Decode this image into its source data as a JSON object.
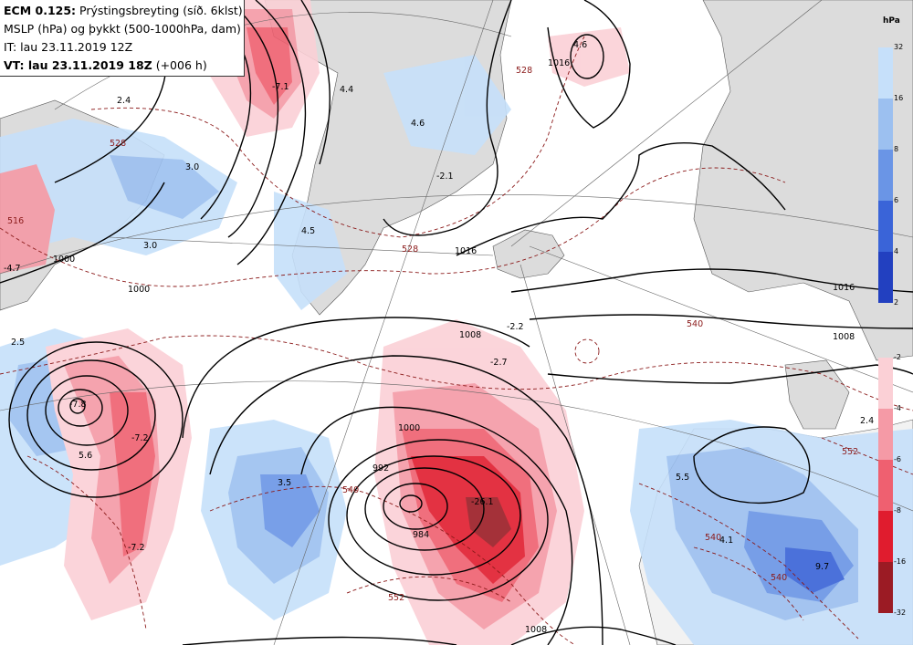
{
  "header": {
    "line1_bold": "ECM 0.125:",
    "line1_rest": " Prýstingsbreyting (síð. 6klst)",
    "line2": "MSLP (hPa) og þykkt (500-1000hPa, dam)",
    "line3": "IT: lau 23.11.2019 12Z",
    "line4_bold": "VT: lau 23.11.2019 18Z",
    "line4_rest": " (+006 h)"
  },
  "colorbar": {
    "unit": "hPa",
    "rise_labels": [
      "32",
      "16",
      "8",
      "6",
      "4",
      "2"
    ],
    "fall_labels": [
      "-2",
      "-4",
      "-6",
      "-8",
      "-16",
      "-32"
    ],
    "rise_colors": [
      "#2240c0",
      "#3a64d8",
      "#6a95e6",
      "#9cc0f0",
      "#c6e0fa"
    ],
    "fall_colors": [
      "#fbd0d6",
      "#f59aa6",
      "#ef6070",
      "#e01c2e",
      "#9b1b24"
    ]
  },
  "isobar_labels": [
    "1016",
    "1016",
    "1016",
    "1008",
    "1008",
    "1008",
    "1000",
    "1000",
    "1000",
    "992",
    "984"
  ],
  "thickness_labels": [
    "528",
    "528",
    "528",
    "540",
    "540",
    "540",
    "540",
    "552",
    "552",
    "516"
  ],
  "tendency_values": [
    "4.6",
    "-7.1",
    "2.4",
    "4.4",
    "4.6",
    "3.0",
    "-2.1",
    "-4.7",
    "3.0",
    "4.5",
    "-2.2",
    "-2.7",
    "2.5",
    "-7.8",
    "-7.2",
    "5.6",
    "-7.2",
    "3.5",
    "-26.1",
    "5.5",
    "2.4",
    "4.1",
    "9.7"
  ]
}
